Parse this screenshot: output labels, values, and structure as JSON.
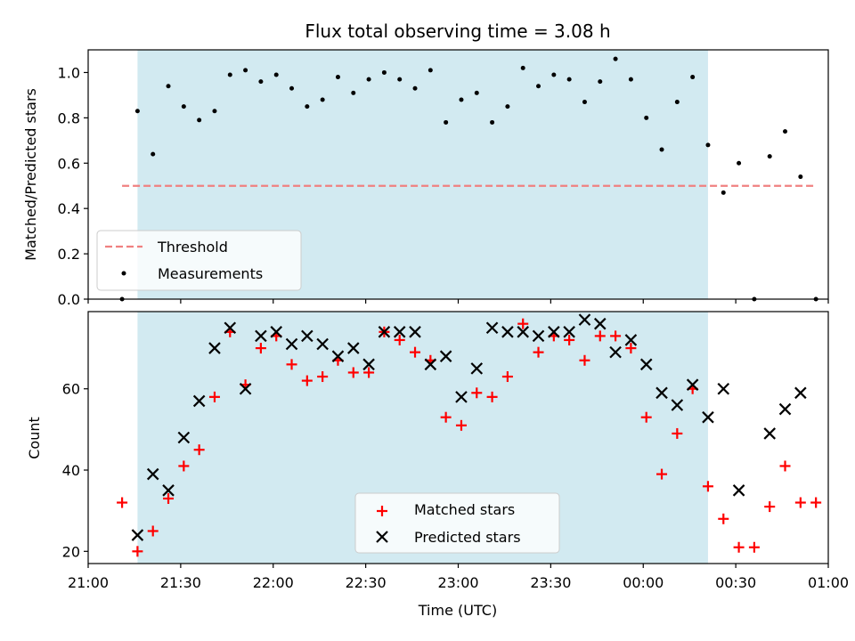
{
  "title": "Flux total observing time = 3.08 h",
  "xlabel": "Time (UTC)",
  "x_ticks": [
    "21:00",
    "21:30",
    "22:00",
    "22:30",
    "23:00",
    "23:30",
    "00:00",
    "00:30",
    "01:00"
  ],
  "colors": {
    "band": "#add8e6",
    "threshold": "#f08080",
    "matched": "#ff0000",
    "predicted": "#000000"
  },
  "chart_data": [
    {
      "type": "scatter",
      "ylabel": "Matched/Predicted stars",
      "xlim": [
        "21:00",
        "01:00"
      ],
      "ylim": [
        0,
        1.1
      ],
      "yticks": [
        "0.0",
        "0.2",
        "0.4",
        "0.6",
        "0.8",
        "1.0"
      ],
      "shaded_span": [
        "21:16",
        "00:21"
      ],
      "threshold": {
        "name": "Threshold",
        "y": 0.5,
        "x_range": [
          "21:11",
          "00:56"
        ]
      },
      "legend_position": "lower-left",
      "series": [
        {
          "name": "Measurements",
          "points": [
            [
              "21:11",
              0.0
            ],
            [
              "21:16",
              0.83
            ],
            [
              "21:21",
              0.64
            ],
            [
              "21:26",
              0.94
            ],
            [
              "21:31",
              0.85
            ],
            [
              "21:36",
              0.79
            ],
            [
              "21:41",
              0.83
            ],
            [
              "21:46",
              0.99
            ],
            [
              "21:51",
              1.01
            ],
            [
              "21:56",
              0.96
            ],
            [
              "22:01",
              0.99
            ],
            [
              "22:06",
              0.93
            ],
            [
              "22:11",
              0.85
            ],
            [
              "22:16",
              0.88
            ],
            [
              "22:21",
              0.98
            ],
            [
              "22:26",
              0.91
            ],
            [
              "22:31",
              0.97
            ],
            [
              "22:36",
              1.0
            ],
            [
              "22:41",
              0.97
            ],
            [
              "22:46",
              0.93
            ],
            [
              "22:51",
              1.01
            ],
            [
              "22:56",
              0.78
            ],
            [
              "23:01",
              0.88
            ],
            [
              "23:06",
              0.91
            ],
            [
              "23:11",
              0.78
            ],
            [
              "23:16",
              0.85
            ],
            [
              "23:21",
              1.02
            ],
            [
              "23:26",
              0.94
            ],
            [
              "23:31",
              0.99
            ],
            [
              "23:36",
              0.97
            ],
            [
              "23:41",
              0.87
            ],
            [
              "23:46",
              0.96
            ],
            [
              "23:51",
              1.06
            ],
            [
              "23:56",
              0.97
            ],
            [
              "00:01",
              0.8
            ],
            [
              "00:06",
              0.66
            ],
            [
              "00:11",
              0.87
            ],
            [
              "00:16",
              0.98
            ],
            [
              "00:21",
              0.68
            ],
            [
              "00:26",
              0.47
            ],
            [
              "00:31",
              0.6
            ],
            [
              "00:36",
              0.0
            ],
            [
              "00:41",
              0.63
            ],
            [
              "00:46",
              0.74
            ],
            [
              "00:51",
              0.54
            ],
            [
              "00:56",
              0.0
            ]
          ]
        }
      ]
    },
    {
      "type": "scatter",
      "ylabel": "Count",
      "xlim": [
        "21:00",
        "01:00"
      ],
      "ylim": [
        17,
        79
      ],
      "yticks": [
        "20",
        "40",
        "60"
      ],
      "shaded_span": [
        "21:16",
        "00:21"
      ],
      "legend_position": "lower-center",
      "series": [
        {
          "name": "Matched stars",
          "points": [
            [
              "21:11",
              32
            ],
            [
              "21:16",
              20
            ],
            [
              "21:21",
              25
            ],
            [
              "21:26",
              33
            ],
            [
              "21:31",
              41
            ],
            [
              "21:36",
              45
            ],
            [
              "21:41",
              58
            ],
            [
              "21:46",
              74
            ],
            [
              "21:51",
              61
            ],
            [
              "21:56",
              70
            ],
            [
              "22:01",
              73
            ],
            [
              "22:06",
              66
            ],
            [
              "22:11",
              62
            ],
            [
              "22:16",
              63
            ],
            [
              "22:21",
              67
            ],
            [
              "22:26",
              64
            ],
            [
              "22:31",
              64
            ],
            [
              "22:36",
              74
            ],
            [
              "22:41",
              72
            ],
            [
              "22:46",
              69
            ],
            [
              "22:51",
              67
            ],
            [
              "22:56",
              53
            ],
            [
              "23:01",
              51
            ],
            [
              "23:06",
              59
            ],
            [
              "23:11",
              58
            ],
            [
              "23:16",
              63
            ],
            [
              "23:21",
              76
            ],
            [
              "23:26",
              69
            ],
            [
              "23:31",
              73
            ],
            [
              "23:36",
              72
            ],
            [
              "23:41",
              67
            ],
            [
              "23:46",
              73
            ],
            [
              "23:51",
              73
            ],
            [
              "23:56",
              70
            ],
            [
              "00:01",
              53
            ],
            [
              "00:06",
              39
            ],
            [
              "00:11",
              49
            ],
            [
              "00:16",
              60
            ],
            [
              "00:21",
              36
            ],
            [
              "00:26",
              28
            ],
            [
              "00:31",
              21
            ],
            [
              "00:36",
              21
            ],
            [
              "00:41",
              31
            ],
            [
              "00:46",
              41
            ],
            [
              "00:51",
              32
            ],
            [
              "00:56",
              32
            ]
          ]
        },
        {
          "name": "Predicted stars",
          "points": [
            [
              "21:16",
              24
            ],
            [
              "21:21",
              39
            ],
            [
              "21:26",
              35
            ],
            [
              "21:31",
              48
            ],
            [
              "21:36",
              57
            ],
            [
              "21:41",
              70
            ],
            [
              "21:46",
              75
            ],
            [
              "21:51",
              60
            ],
            [
              "21:56",
              73
            ],
            [
              "22:01",
              74
            ],
            [
              "22:06",
              71
            ],
            [
              "22:11",
              73
            ],
            [
              "22:16",
              71
            ],
            [
              "22:21",
              68
            ],
            [
              "22:26",
              70
            ],
            [
              "22:31",
              66
            ],
            [
              "22:36",
              74
            ],
            [
              "22:41",
              74
            ],
            [
              "22:46",
              74
            ],
            [
              "22:51",
              66
            ],
            [
              "22:56",
              68
            ],
            [
              "23:01",
              58
            ],
            [
              "23:06",
              65
            ],
            [
              "23:11",
              75
            ],
            [
              "23:16",
              74
            ],
            [
              "23:21",
              74
            ],
            [
              "23:26",
              73
            ],
            [
              "23:31",
              74
            ],
            [
              "23:36",
              74
            ],
            [
              "23:41",
              77
            ],
            [
              "23:46",
              76
            ],
            [
              "23:51",
              69
            ],
            [
              "23:56",
              72
            ],
            [
              "00:01",
              66
            ],
            [
              "00:06",
              59
            ],
            [
              "00:11",
              56
            ],
            [
              "00:16",
              61
            ],
            [
              "00:21",
              53
            ],
            [
              "00:26",
              60
            ],
            [
              "00:31",
              35
            ],
            [
              "00:46",
              55
            ],
            [
              "00:51",
              59
            ],
            [
              "00:41",
              49
            ]
          ]
        }
      ]
    }
  ]
}
